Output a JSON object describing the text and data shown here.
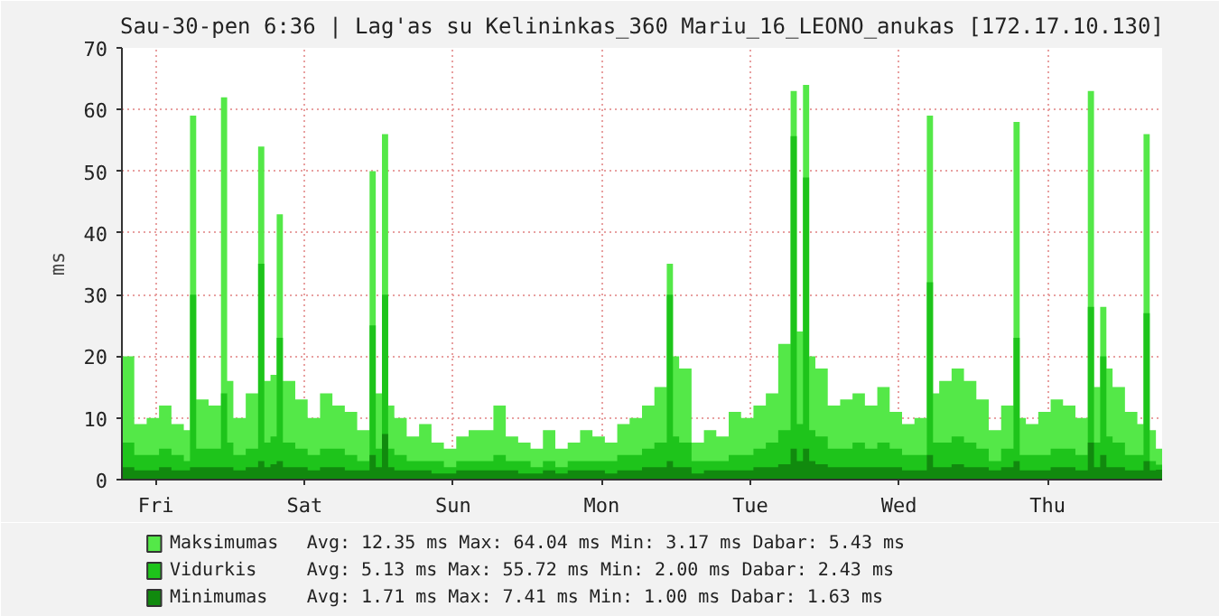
{
  "chart_data": {
    "type": "area",
    "title": "Sau-30-pen 6:36 | Lag'as su Kelininkas_360 Mariu_16_LEONO_anukas [172.17.10.130]",
    "ylabel": "ms",
    "categories": [
      null,
      null,
      null,
      null,
      null,
      "Fri",
      null,
      null,
      null,
      null,
      null,
      null,
      null,
      null,
      null,
      null,
      null,
      null,
      null,
      null,
      null,
      null,
      null,
      null,
      null,
      null,
      null,
      null,
      null,
      "Sat",
      null,
      null,
      null,
      null,
      null,
      null,
      null,
      null,
      null,
      null,
      null,
      null,
      null,
      null,
      null,
      null,
      null,
      null,
      null,
      null,
      null,
      null,
      null,
      "Sun",
      null,
      null,
      null,
      null,
      null,
      null,
      null,
      null,
      null,
      null,
      null,
      null,
      null,
      null,
      null,
      null,
      null,
      null,
      null,
      null,
      null,
      null,
      null,
      "Mon",
      null,
      null,
      null,
      null,
      null,
      null,
      null,
      null,
      null,
      null,
      null,
      null,
      null,
      null,
      null,
      null,
      null,
      null,
      null,
      null,
      null,
      null,
      null,
      "Tue",
      null,
      null,
      null,
      null,
      null,
      null,
      null,
      null,
      null,
      null,
      null,
      null,
      null,
      null,
      null,
      null,
      null,
      null,
      null,
      null,
      null,
      null,
      null,
      "Wed",
      null,
      null,
      null,
      null,
      null,
      null,
      null,
      null,
      null,
      null,
      null,
      null,
      null,
      null,
      null,
      null,
      null,
      null,
      null,
      null,
      null,
      null,
      null,
      "Thu",
      null,
      null,
      null,
      null,
      null,
      null,
      null,
      null,
      null,
      null,
      null,
      null,
      null,
      null,
      null,
      null,
      null,
      null
    ],
    "series": [
      {
        "name": "Maksimumas",
        "color": "#54e848",
        "values": [
          20,
          20,
          9,
          9,
          10,
          10,
          12,
          12,
          9,
          9,
          8,
          59,
          13,
          13,
          12,
          12,
          62,
          16,
          10,
          10,
          14,
          14,
          54,
          16,
          17,
          43,
          16,
          16,
          13,
          13,
          10,
          10,
          14,
          14,
          12,
          12,
          11,
          11,
          8,
          8,
          50,
          14,
          56,
          12,
          10,
          10,
          7,
          7,
          9,
          9,
          6,
          6,
          5,
          5,
          7,
          7,
          8,
          8,
          8,
          8,
          12,
          12,
          7,
          7,
          6,
          6,
          5,
          5,
          8,
          8,
          5,
          5,
          6,
          6,
          8,
          8,
          7,
          7,
          6,
          6,
          9,
          9,
          10,
          10,
          12,
          12,
          15,
          15,
          35,
          20,
          18,
          18,
          6,
          6,
          8,
          8,
          7,
          7,
          11,
          11,
          10,
          10,
          12,
          12,
          14,
          14,
          22,
          22,
          63,
          24,
          64,
          20,
          18,
          18,
          12,
          12,
          13,
          13,
          14,
          14,
          12,
          12,
          15,
          15,
          11,
          11,
          9,
          9,
          10,
          10,
          59,
          14,
          16,
          16,
          18,
          18,
          16,
          16,
          13,
          13,
          8,
          8,
          12,
          12,
          58,
          10,
          9,
          9,
          11,
          11,
          13,
          13,
          12,
          12,
          10,
          10,
          63,
          15,
          28,
          18,
          15,
          15,
          11,
          11,
          9,
          56,
          8,
          5
        ]
      },
      {
        "name": "Vidurkis",
        "color": "#1ec41b",
        "values": [
          6,
          6,
          4,
          4,
          4,
          4,
          5,
          5,
          4,
          4,
          3,
          30,
          5,
          5,
          5,
          5,
          14,
          6,
          4,
          4,
          5,
          5,
          35,
          6,
          7,
          23,
          6,
          6,
          5,
          5,
          4,
          4,
          5,
          5,
          5,
          5,
          4,
          4,
          3,
          3,
          25,
          5,
          30,
          5,
          4,
          4,
          3,
          3,
          3,
          3,
          3,
          3,
          2,
          2,
          3,
          3,
          3,
          3,
          3,
          3,
          4,
          4,
          3,
          3,
          3,
          3,
          2,
          2,
          3,
          3,
          2,
          2,
          3,
          3,
          3,
          3,
          3,
          3,
          3,
          3,
          4,
          4,
          4,
          4,
          5,
          5,
          6,
          6,
          30,
          7,
          6,
          6,
          3,
          3,
          3,
          3,
          3,
          3,
          4,
          4,
          4,
          4,
          5,
          5,
          6,
          6,
          8,
          8,
          55.7,
          9,
          49,
          8,
          7,
          7,
          5,
          5,
          5,
          5,
          6,
          6,
          5,
          5,
          6,
          6,
          5,
          5,
          4,
          4,
          4,
          4,
          32,
          6,
          6,
          6,
          7,
          7,
          6,
          6,
          5,
          5,
          3,
          3,
          5,
          5,
          23,
          4,
          4,
          4,
          4,
          4,
          5,
          5,
          5,
          5,
          4,
          4,
          28,
          6,
          20,
          7,
          6,
          6,
          4,
          4,
          4,
          27,
          3,
          2.4
        ]
      },
      {
        "name": "Minimumas",
        "color": "#118a0e",
        "values": [
          2,
          2,
          1.5,
          1.5,
          1.5,
          1.5,
          2,
          2,
          1.5,
          1.5,
          1.5,
          2,
          2,
          2,
          2,
          2,
          2,
          2,
          1.5,
          1.5,
          2,
          2,
          3,
          2,
          2.5,
          3,
          2,
          2,
          2,
          2,
          1.5,
          1.5,
          2,
          2,
          2,
          2,
          1.5,
          1.5,
          1.5,
          1.5,
          4,
          2,
          7.4,
          2,
          1.5,
          1.5,
          1.5,
          1.5,
          1.5,
          1.5,
          1,
          1,
          1,
          1,
          1.5,
          1.5,
          1.5,
          1.5,
          1.5,
          1.5,
          1.5,
          1.5,
          1.5,
          1.5,
          1,
          1,
          1,
          1,
          1.5,
          1.5,
          1,
          1,
          1.5,
          1.5,
          1.5,
          1.5,
          1.5,
          1.5,
          1,
          1,
          1.5,
          1.5,
          1.5,
          1.5,
          2,
          2,
          2,
          2,
          3,
          2,
          2,
          2,
          1,
          1,
          1.5,
          1.5,
          1.5,
          1.5,
          1.5,
          1.5,
          1.5,
          1.5,
          2,
          2,
          2,
          2,
          2.5,
          2.5,
          5,
          3,
          5,
          3,
          2.5,
          2.5,
          2,
          2,
          2,
          2,
          2,
          2,
          2,
          2,
          2,
          2,
          2,
          2,
          1.5,
          1.5,
          1.5,
          1.5,
          4,
          2,
          2,
          2,
          2.5,
          2.5,
          2,
          2,
          2,
          2,
          1.5,
          1.5,
          2,
          2,
          3,
          1.5,
          1.5,
          1.5,
          1.5,
          1.5,
          2,
          2,
          2,
          2,
          1.5,
          1.5,
          6,
          2,
          4,
          2,
          2,
          2,
          1.5,
          1.5,
          1.5,
          3,
          1.5,
          1.6
        ]
      }
    ],
    "ylim": [
      0,
      70
    ],
    "yticks": [
      0,
      10,
      20,
      30,
      40,
      50,
      60,
      70
    ],
    "grid": true,
    "legend": "bottom",
    "annotations": [
      "Avg:  12.35 ms   Max:  64.04 ms   Min:   3.17 ms   Dabar:   5.43 ms",
      "Avg:   5.13 ms   Max:  55.72 ms   Min:   2.00 ms   Dabar:   2.43 ms",
      "    Avg:   1.71 ms      Max:   7.41 ms      Min:   1.00 ms      Dabar:   1.63 ms"
    ]
  }
}
